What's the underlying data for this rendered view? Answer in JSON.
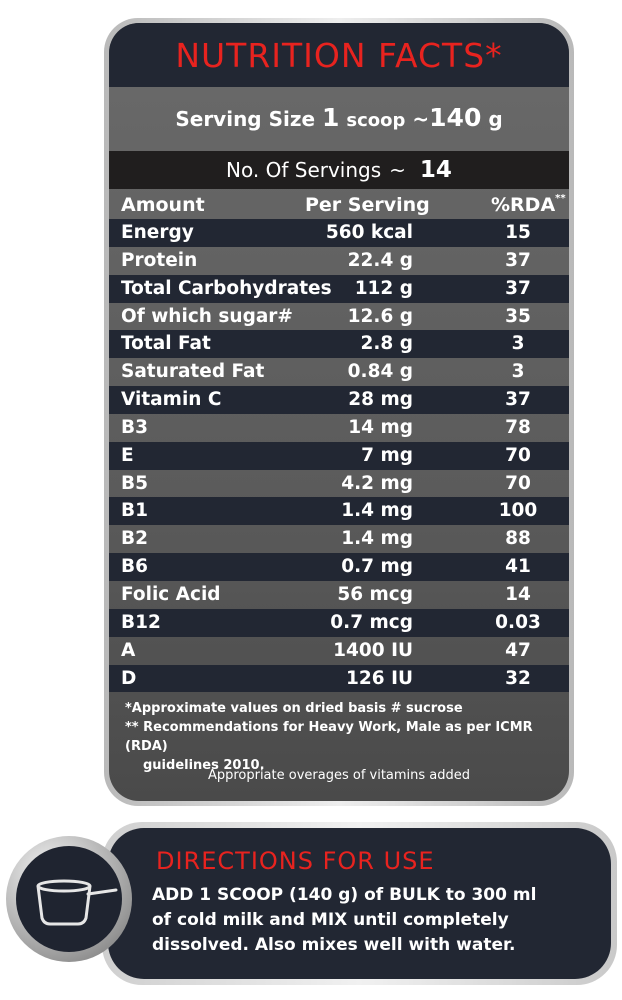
{
  "title": "NUTRITION FACTS*",
  "serving_size": {
    "label": "Serving Size",
    "qty": "1",
    "unit": "scoop",
    "approx": "~",
    "weight": "140",
    "weight_unit": "g"
  },
  "servings": {
    "label": "No. Of Servings",
    "approx": "~",
    "value": "14"
  },
  "headers": {
    "amount": "Amount",
    "per_serving": "Per Serving",
    "rda": "%RDA",
    "rda_mark": "**"
  },
  "rows": [
    {
      "name": "Energy",
      "qty": "560 kcal",
      "rda": "15"
    },
    {
      "name": "Protein",
      "qty": "22.4 g",
      "rda": "37"
    },
    {
      "name": "Total Carbohydrates",
      "qty": "112  g",
      "rda": "37"
    },
    {
      "name": "Of which sugar#",
      "qty": "12.6 g",
      "rda": "35"
    },
    {
      "name": "Total Fat",
      "qty": "2.8 g",
      "rda": "3"
    },
    {
      "name": "Saturated Fat",
      "qty": "0.84 g",
      "rda": "3"
    },
    {
      "name": "Vitamin C",
      "qty": "28 mg",
      "rda": "37"
    },
    {
      "name": "B3",
      "qty": "14 mg",
      "rda": "78"
    },
    {
      "name": "E",
      "qty": "7 mg",
      "rda": "70"
    },
    {
      "name": "B5",
      "qty": "4.2 mg",
      "rda": "70"
    },
    {
      "name": "B1",
      "qty": "1.4 mg",
      "rda": "100"
    },
    {
      "name": "B2",
      "qty": "1.4 mg",
      "rda": "88"
    },
    {
      "name": "B6",
      "qty": "0.7 mg",
      "rda": "41"
    },
    {
      "name": "Folic Acid",
      "qty": "56 mcg",
      "rda": "14"
    },
    {
      "name": "B12",
      "qty": "0.7 mcg",
      "rda": "0.03"
    },
    {
      "name": "A",
      "qty": "1400 IU",
      "rda": "47"
    },
    {
      "name": "D",
      "qty": "126 IU",
      "rda": "32"
    }
  ],
  "notes": {
    "note1": "*Approximate values on  dried basis # sucrose",
    "note2_line1": "** Recommendations for Heavy Work, Male as per ICMR (RDA)",
    "note2_line2": "guidelines 2010.",
    "overages": "Appropriate overages of vitamins added"
  },
  "directions": {
    "title": "DIRECTIONS FOR USE",
    "line1": "ADD 1 SCOOP (140 g) of BULK to 300 ml",
    "line2": "of cold milk and MIX until completely",
    "line3": "dissolved. Also mixes well with water."
  },
  "icons": {
    "scoop": "scoop-icon"
  },
  "colors": {
    "accent_red": "#e8231f",
    "navy": "#222733",
    "panel_gray": "#5f5f5f"
  }
}
